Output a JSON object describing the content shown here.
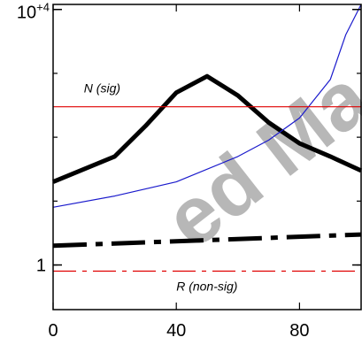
{
  "chart_data": {
    "type": "line",
    "title": "",
    "xlabel": "",
    "ylabel": "",
    "x_ticks": [
      0,
      40,
      80
    ],
    "x_tick_labels": [
      "0",
      "40",
      "80"
    ],
    "y_scale": "log",
    "y_ticks": [
      1,
      10000
    ],
    "y_tick_labels": [
      "1",
      "10+4"
    ],
    "xlim": [
      0,
      100
    ],
    "ylim": [
      0.2,
      12000
    ],
    "grid": false,
    "series": [
      {
        "x": [
          0,
          20,
          30,
          40,
          50,
          60,
          70,
          80,
          90,
          100
        ],
        "values": [
          20,
          50,
          150,
          500,
          900,
          450,
          170,
          80,
          50,
          30
        ],
        "color": "#000000",
        "style": "solid",
        "weight": "heavy"
      },
      {
        "x": [
          0,
          20,
          40,
          60,
          70,
          80,
          90,
          95,
          100
        ],
        "values": [
          8,
          12,
          20,
          50,
          90,
          200,
          800,
          4000,
          12000
        ],
        "color": "#1a1acc",
        "style": "solid",
        "weight": "thin"
      },
      {
        "x": [
          0,
          100
        ],
        "values": [
          2,
          3
        ],
        "color": "#000000",
        "style": "dash-dot",
        "weight": "heavy"
      },
      {
        "x": [
          0,
          100
        ],
        "values": [
          300,
          300
        ],
        "color": "#e00000",
        "style": "solid",
        "weight": "thin"
      },
      {
        "x": [
          0,
          100
        ],
        "values": [
          0.8,
          0.8
        ],
        "color": "#e00000",
        "style": "dash-dot",
        "weight": "thin"
      }
    ],
    "annotations": [
      {
        "text": "N (sig)",
        "x": 10,
        "y": 500
      },
      {
        "text": "R (non-sig)",
        "x": 40,
        "y": 0.4
      }
    ]
  },
  "watermark": "ed Ma"
}
